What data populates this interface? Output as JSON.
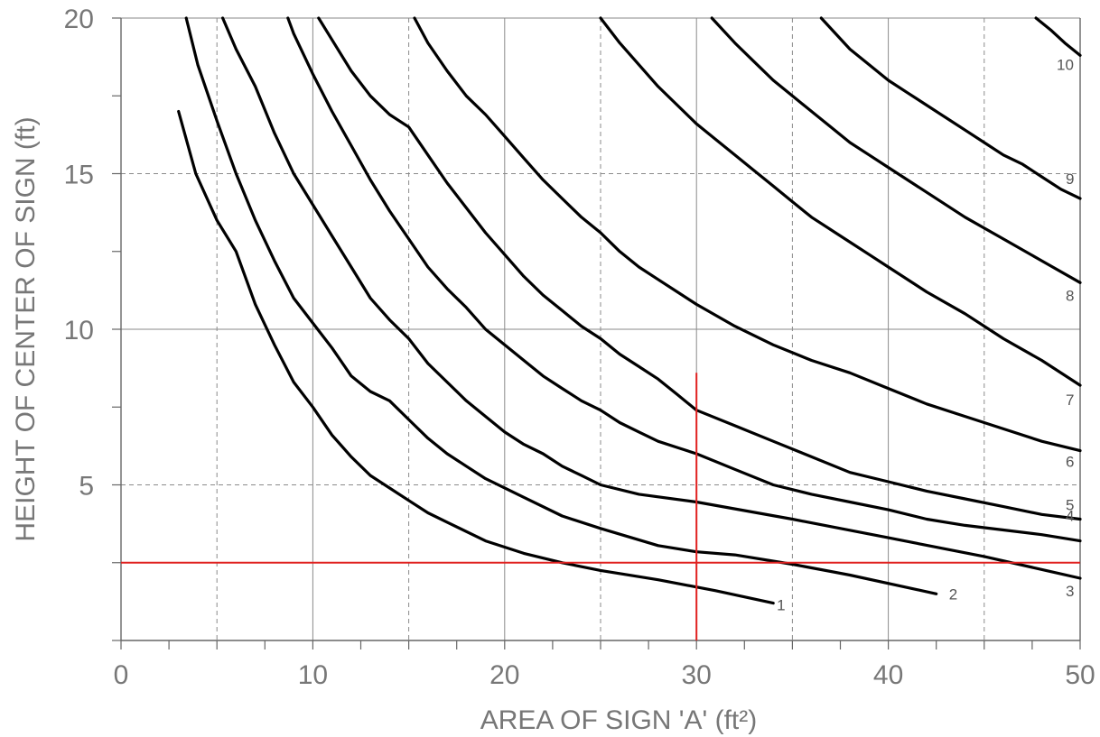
{
  "chart_data": {
    "type": "line",
    "xlabel": "AREA OF SIGN 'A' (ft²)",
    "ylabel": "HEIGHT OF CENTER OF SIGN (ft)",
    "xlim": [
      0,
      50
    ],
    "ylim": [
      0,
      20
    ],
    "x_ticks": [
      "0",
      "10",
      "20",
      "30",
      "40",
      "50"
    ],
    "y_ticks": [
      "5",
      "10",
      "15",
      "20"
    ],
    "grid": true,
    "series_color": "#000000",
    "reference_color": "#e0201f",
    "series": [
      {
        "name": "1",
        "points": [
          [
            3.0,
            17.0
          ],
          [
            3.9,
            15.0
          ],
          [
            5.0,
            13.5
          ],
          [
            6.0,
            12.5
          ],
          [
            7.0,
            10.8
          ],
          [
            8.0,
            9.5
          ],
          [
            9.0,
            8.3
          ],
          [
            10.0,
            7.5
          ],
          [
            11.0,
            6.6
          ],
          [
            12.0,
            5.9
          ],
          [
            13.0,
            5.3
          ],
          [
            14.0,
            4.9
          ],
          [
            15.0,
            4.5
          ],
          [
            16.0,
            4.1
          ],
          [
            17.0,
            3.8
          ],
          [
            19.0,
            3.2
          ],
          [
            21.0,
            2.8
          ],
          [
            23.0,
            2.5
          ],
          [
            25.0,
            2.25
          ],
          [
            28.0,
            1.95
          ],
          [
            31.0,
            1.6
          ],
          [
            34.0,
            1.2
          ]
        ]
      },
      {
        "name": "2",
        "points": [
          [
            3.4,
            20.0
          ],
          [
            4.0,
            18.5
          ],
          [
            5.0,
            16.7
          ],
          [
            6.0,
            15.0
          ],
          [
            7.0,
            13.5
          ],
          [
            8.0,
            12.2
          ],
          [
            9.0,
            11.0
          ],
          [
            10.0,
            10.2
          ],
          [
            11.0,
            9.4
          ],
          [
            12.0,
            8.5
          ],
          [
            13.0,
            8.0
          ],
          [
            14.0,
            7.7
          ],
          [
            15.0,
            7.1
          ],
          [
            16.0,
            6.5
          ],
          [
            17.0,
            6.0
          ],
          [
            18.0,
            5.6
          ],
          [
            19.0,
            5.2
          ],
          [
            21.0,
            4.6
          ],
          [
            23.0,
            4.0
          ],
          [
            25.0,
            3.6
          ],
          [
            28.0,
            3.05
          ],
          [
            30.0,
            2.85
          ],
          [
            32.0,
            2.75
          ],
          [
            35.0,
            2.45
          ],
          [
            38.0,
            2.1
          ],
          [
            42.5,
            1.5
          ]
        ]
      },
      {
        "name": "3",
        "points": [
          [
            5.3,
            20.0
          ],
          [
            6.0,
            19.0
          ],
          [
            7.0,
            17.8
          ],
          [
            8.0,
            16.3
          ],
          [
            9.0,
            15.0
          ],
          [
            10.0,
            14.0
          ],
          [
            11.0,
            13.0
          ],
          [
            12.0,
            12.0
          ],
          [
            13.0,
            11.0
          ],
          [
            14.0,
            10.3
          ],
          [
            15.0,
            9.7
          ],
          [
            16.0,
            8.9
          ],
          [
            17.0,
            8.3
          ],
          [
            18.0,
            7.7
          ],
          [
            19.0,
            7.2
          ],
          [
            20.0,
            6.7
          ],
          [
            21.0,
            6.3
          ],
          [
            22.0,
            6.0
          ],
          [
            23.0,
            5.6
          ],
          [
            24.0,
            5.3
          ],
          [
            25.0,
            5.0
          ],
          [
            27.0,
            4.7
          ],
          [
            30.0,
            4.45
          ],
          [
            35.0,
            3.9
          ],
          [
            40.0,
            3.3
          ],
          [
            45.0,
            2.7
          ],
          [
            50.0,
            2.0
          ]
        ]
      },
      {
        "name": "4",
        "points": [
          [
            8.7,
            20.0
          ],
          [
            9.0,
            19.5
          ],
          [
            10.0,
            18.2
          ],
          [
            11.0,
            17.0
          ],
          [
            12.0,
            15.9
          ],
          [
            13.0,
            14.8
          ],
          [
            14.0,
            13.8
          ],
          [
            15.0,
            12.9
          ],
          [
            16.0,
            12.0
          ],
          [
            17.0,
            11.3
          ],
          [
            18.0,
            10.7
          ],
          [
            19.0,
            10.0
          ],
          [
            20.0,
            9.5
          ],
          [
            21.0,
            9.0
          ],
          [
            22.0,
            8.5
          ],
          [
            23.0,
            8.1
          ],
          [
            24.0,
            7.7
          ],
          [
            25.0,
            7.4
          ],
          [
            26.0,
            7.0
          ],
          [
            27.0,
            6.7
          ],
          [
            28.0,
            6.4
          ],
          [
            29.0,
            6.2
          ],
          [
            30.0,
            6.0
          ],
          [
            32.0,
            5.5
          ],
          [
            34.0,
            5.0
          ],
          [
            36.0,
            4.7
          ],
          [
            38.0,
            4.45
          ],
          [
            40.0,
            4.2
          ],
          [
            42.0,
            3.9
          ],
          [
            44.0,
            3.7
          ],
          [
            46.0,
            3.55
          ],
          [
            48.0,
            3.4
          ],
          [
            50.0,
            3.2
          ]
        ]
      },
      {
        "name": "5",
        "points": [
          [
            10.3,
            20.0
          ],
          [
            11.0,
            19.3
          ],
          [
            12.0,
            18.3
          ],
          [
            13.0,
            17.5
          ],
          [
            14.0,
            16.9
          ],
          [
            15.0,
            16.5
          ],
          [
            16.0,
            15.6
          ],
          [
            17.0,
            14.7
          ],
          [
            18.0,
            13.9
          ],
          [
            19.0,
            13.1
          ],
          [
            20.0,
            12.4
          ],
          [
            21.0,
            11.7
          ],
          [
            22.0,
            11.1
          ],
          [
            23.0,
            10.6
          ],
          [
            24.0,
            10.1
          ],
          [
            25.0,
            9.7
          ],
          [
            26.0,
            9.2
          ],
          [
            27.0,
            8.8
          ],
          [
            28.0,
            8.4
          ],
          [
            29.0,
            7.9
          ],
          [
            30.0,
            7.4
          ],
          [
            32.0,
            6.9
          ],
          [
            34.0,
            6.4
          ],
          [
            36.0,
            5.9
          ],
          [
            38.0,
            5.4
          ],
          [
            40.0,
            5.1
          ],
          [
            42.0,
            4.8
          ],
          [
            44.0,
            4.55
          ],
          [
            46.0,
            4.3
          ],
          [
            48.0,
            4.05
          ],
          [
            50.0,
            3.9
          ]
        ]
      },
      {
        "name": "6",
        "points": [
          [
            15.3,
            20.0
          ],
          [
            16.0,
            19.2
          ],
          [
            17.0,
            18.3
          ],
          [
            18.0,
            17.5
          ],
          [
            19.0,
            16.9
          ],
          [
            20.0,
            16.2
          ],
          [
            21.0,
            15.5
          ],
          [
            22.0,
            14.8
          ],
          [
            23.0,
            14.2
          ],
          [
            24.0,
            13.6
          ],
          [
            25.0,
            13.1
          ],
          [
            26.0,
            12.5
          ],
          [
            27.0,
            12.0
          ],
          [
            28.0,
            11.6
          ],
          [
            29.0,
            11.2
          ],
          [
            30.0,
            10.8
          ],
          [
            32.0,
            10.1
          ],
          [
            34.0,
            9.5
          ],
          [
            36.0,
            9.0
          ],
          [
            38.0,
            8.6
          ],
          [
            40.0,
            8.1
          ],
          [
            42.0,
            7.6
          ],
          [
            44.0,
            7.2
          ],
          [
            46.0,
            6.8
          ],
          [
            48.0,
            6.4
          ],
          [
            50.0,
            6.1
          ]
        ]
      },
      {
        "name": "7",
        "points": [
          [
            25.0,
            20.0
          ],
          [
            26.0,
            19.2
          ],
          [
            27.0,
            18.5
          ],
          [
            28.0,
            17.8
          ],
          [
            29.0,
            17.2
          ],
          [
            30.0,
            16.6
          ],
          [
            31.0,
            16.1
          ],
          [
            32.0,
            15.6
          ],
          [
            33.0,
            15.1
          ],
          [
            34.0,
            14.6
          ],
          [
            35.0,
            14.1
          ],
          [
            36.0,
            13.6
          ],
          [
            37.0,
            13.2
          ],
          [
            38.0,
            12.8
          ],
          [
            39.0,
            12.4
          ],
          [
            40.0,
            12.0
          ],
          [
            42.0,
            11.2
          ],
          [
            44.0,
            10.5
          ],
          [
            46.0,
            9.7
          ],
          [
            48.0,
            9.0
          ],
          [
            50.0,
            8.2
          ]
        ]
      },
      {
        "name": "8",
        "points": [
          [
            30.8,
            20.0
          ],
          [
            32.0,
            19.2
          ],
          [
            33.0,
            18.6
          ],
          [
            34.0,
            18.0
          ],
          [
            35.0,
            17.5
          ],
          [
            36.0,
            17.0
          ],
          [
            37.0,
            16.5
          ],
          [
            38.0,
            16.0
          ],
          [
            39.0,
            15.6
          ],
          [
            40.0,
            15.2
          ],
          [
            42.0,
            14.4
          ],
          [
            44.0,
            13.6
          ],
          [
            46.0,
            12.9
          ],
          [
            48.0,
            12.2
          ],
          [
            50.0,
            11.5
          ]
        ]
      },
      {
        "name": "9",
        "points": [
          [
            36.5,
            20.0
          ],
          [
            38.0,
            19.0
          ],
          [
            39.0,
            18.5
          ],
          [
            40.0,
            18.0
          ],
          [
            41.0,
            17.6
          ],
          [
            42.0,
            17.2
          ],
          [
            43.0,
            16.8
          ],
          [
            44.0,
            16.4
          ],
          [
            45.0,
            16.0
          ],
          [
            46.0,
            15.6
          ],
          [
            47.0,
            15.3
          ],
          [
            48.0,
            14.9
          ],
          [
            49.0,
            14.5
          ],
          [
            50.0,
            14.2
          ]
        ]
      },
      {
        "name": "10",
        "points": [
          [
            47.7,
            20.0
          ],
          [
            48.5,
            19.6
          ],
          [
            49.2,
            19.2
          ],
          [
            50.0,
            18.8
          ]
        ]
      }
    ],
    "reference_lines": [
      {
        "orientation": "horizontal",
        "y": 2.5,
        "x_from": 0,
        "x_to": 50
      },
      {
        "orientation": "vertical",
        "x": 30,
        "y_from": 0,
        "y_to": 8.6
      }
    ]
  }
}
